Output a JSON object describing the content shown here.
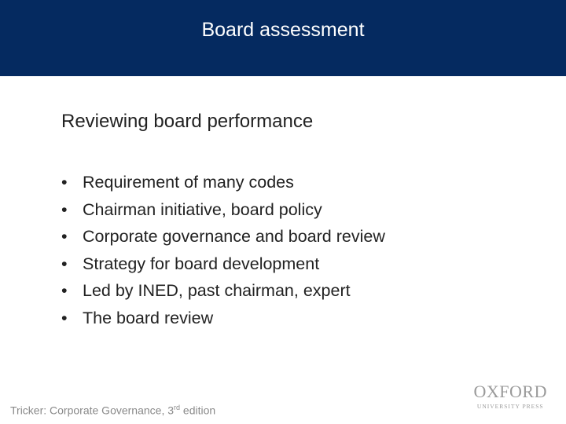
{
  "header": {
    "title": "Board assessment",
    "background_color": "#052a60"
  },
  "content": {
    "subtitle": "Reviewing board performance",
    "bullets": [
      "Requirement of many codes",
      "Chairman initiative, board policy",
      "Corporate governance and board review",
      "Strategy for board development",
      "Led by INED, past chairman, expert",
      "The board review"
    ]
  },
  "footer": {
    "citation": "Tricker: Corporate Governance, 3",
    "superscript": "rd",
    "citation_suffix": " edition"
  },
  "logo": {
    "line1": "OXFORD",
    "line2": "UNIVERSITY PRESS"
  }
}
